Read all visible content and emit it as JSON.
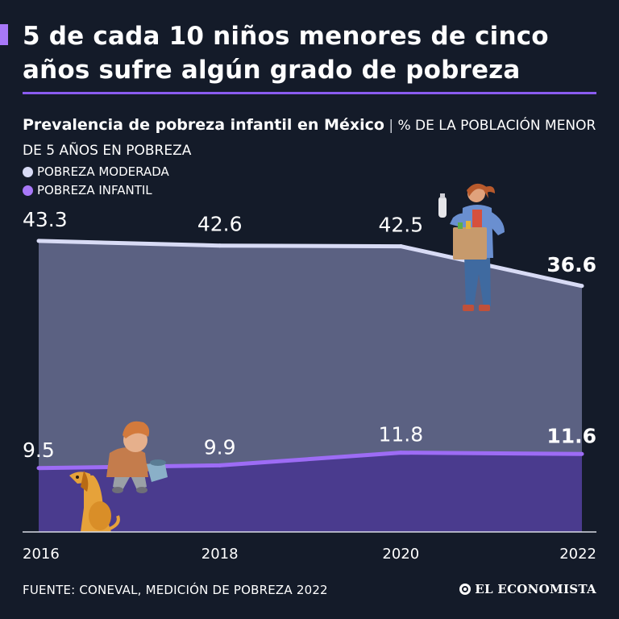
{
  "headline": "5 de cada 10 niños menores de cinco años sufre algún grado de pobreza",
  "subtitle": {
    "bold": "Prevalencia de pobreza infantil en México",
    "separator": "|",
    "unit": "% DE LA POBLACIÓN MENOR DE 5 AÑOS EN POBREZA"
  },
  "legend": [
    {
      "label": "POBREZA MODERADA",
      "color": "#d8dbf5"
    },
    {
      "label": "POBREZA INFANTIL",
      "color": "#a878f8"
    }
  ],
  "source": "FUENTE: CONEVAL, MEDICIÓN DE POBREZA 2022",
  "brand": "EL ECONOMISTA",
  "colors": {
    "background": "#141b29",
    "accent": "#a878f8",
    "area_moderada": "#5b6182",
    "line_moderada": "#d8dbf5",
    "area_infantil": "#4a3b8e",
    "line_infantil": "#9d6cf5"
  },
  "chart_data": {
    "type": "area",
    "title": "Prevalencia de pobreza infantil en México",
    "ylabel": "% de la población menor de 5 años en pobreza",
    "x": [
      "2016",
      "2018",
      "2020",
      "2022"
    ],
    "ylim": [
      0,
      50
    ],
    "series": [
      {
        "name": "POBREZA MODERADA",
        "values": [
          43.3,
          42.6,
          42.5,
          36.6
        ],
        "labels": [
          "43.3",
          "42.6",
          "42.5",
          "36.6"
        ]
      },
      {
        "name": "POBREZA INFANTIL",
        "values": [
          9.5,
          9.9,
          11.8,
          11.6
        ],
        "labels": [
          "9.5",
          "9.9",
          "11.8",
          "11.6"
        ]
      }
    ]
  }
}
